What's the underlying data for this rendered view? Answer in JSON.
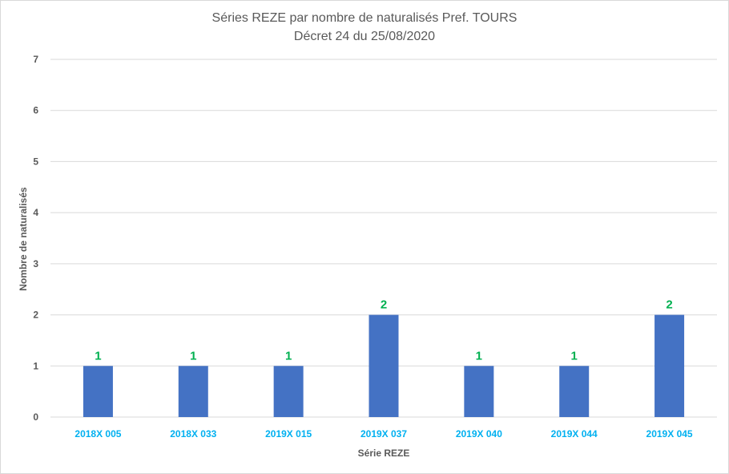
{
  "chart_data": {
    "type": "bar",
    "title": "Séries REZE par nombre de naturalisés Pref. TOURS",
    "subtitle": "Décret 24 du 25/08/2020",
    "xlabel": "Série REZE",
    "ylabel": "Nombre de naturalisés",
    "categories": [
      "2018X 005",
      "2018X 033",
      "2019X 015",
      "2019X 037",
      "2019X 040",
      "2019X 044",
      "2019X 045"
    ],
    "values": [
      1,
      1,
      1,
      2,
      1,
      1,
      2
    ],
    "data_labels": [
      "1",
      "1",
      "1",
      "2",
      "1",
      "1",
      "2"
    ],
    "yticks": [
      "0",
      "1",
      "2",
      "3",
      "4",
      "5",
      "6",
      "7"
    ],
    "ylim": [
      0,
      7
    ],
    "grid": true,
    "legend": "none",
    "colors": {
      "bar": "#4472c4",
      "data_label": "#00b050",
      "category_label": "#00b0f0",
      "grid": "#d9d9d9",
      "text": "#595959"
    }
  }
}
